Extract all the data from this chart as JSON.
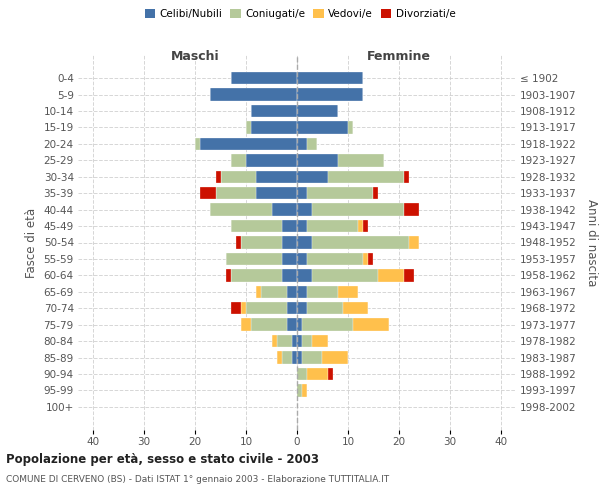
{
  "age_groups": [
    "0-4",
    "5-9",
    "10-14",
    "15-19",
    "20-24",
    "25-29",
    "30-34",
    "35-39",
    "40-44",
    "45-49",
    "50-54",
    "55-59",
    "60-64",
    "65-69",
    "70-74",
    "75-79",
    "80-84",
    "85-89",
    "90-94",
    "95-99",
    "100+"
  ],
  "birth_years": [
    "1998-2002",
    "1993-1997",
    "1988-1992",
    "1983-1987",
    "1978-1982",
    "1973-1977",
    "1968-1972",
    "1963-1967",
    "1958-1962",
    "1953-1957",
    "1948-1952",
    "1943-1947",
    "1938-1942",
    "1933-1937",
    "1928-1932",
    "1923-1927",
    "1918-1922",
    "1913-1917",
    "1908-1912",
    "1903-1907",
    "≤ 1902"
  ],
  "colors": {
    "celibe": "#4472a8",
    "coniugato": "#b5c99a",
    "vedovo": "#ffc04c",
    "divorziato": "#cc1100"
  },
  "male": {
    "celibe": [
      13,
      17,
      9,
      9,
      19,
      10,
      8,
      8,
      5,
      3,
      3,
      3,
      3,
      2,
      2,
      2,
      1,
      1,
      0,
      0,
      0
    ],
    "coniugato": [
      0,
      0,
      0,
      1,
      1,
      3,
      7,
      8,
      12,
      10,
      8,
      11,
      10,
      5,
      8,
      7,
      3,
      2,
      0,
      0,
      0
    ],
    "vedovo": [
      0,
      0,
      0,
      0,
      0,
      0,
      0,
      0,
      0,
      0,
      0,
      0,
      0,
      1,
      1,
      2,
      1,
      1,
      0,
      0,
      0
    ],
    "divorziato": [
      0,
      0,
      0,
      0,
      0,
      0,
      1,
      3,
      0,
      0,
      1,
      0,
      1,
      0,
      2,
      0,
      0,
      0,
      0,
      0,
      0
    ]
  },
  "female": {
    "nubile": [
      13,
      13,
      8,
      10,
      2,
      8,
      6,
      2,
      3,
      2,
      3,
      2,
      3,
      2,
      2,
      1,
      1,
      1,
      0,
      0,
      0
    ],
    "coniugata": [
      0,
      0,
      0,
      1,
      2,
      9,
      15,
      13,
      18,
      10,
      19,
      11,
      13,
      6,
      7,
      10,
      2,
      4,
      2,
      1,
      0
    ],
    "vedova": [
      0,
      0,
      0,
      0,
      0,
      0,
      0,
      0,
      0,
      1,
      2,
      1,
      5,
      4,
      5,
      7,
      3,
      5,
      4,
      1,
      0
    ],
    "divorziata": [
      0,
      0,
      0,
      0,
      0,
      0,
      1,
      1,
      3,
      1,
      0,
      1,
      2,
      0,
      0,
      0,
      0,
      0,
      1,
      0,
      0
    ]
  },
  "xlim": [
    -43,
    43
  ],
  "xticks": [
    -40,
    -30,
    -20,
    -10,
    0,
    10,
    20,
    30,
    40
  ],
  "xtick_labels": [
    "40",
    "30",
    "20",
    "10",
    "0",
    "10",
    "20",
    "30",
    "40"
  ],
  "title_main": "Popolazione per età, sesso e stato civile - 2003",
  "title_sub": "COMUNE DI CERVENO (BS) - Dati ISTAT 1° gennaio 2003 - Elaborazione TUTTITALIA.IT",
  "ylabel_left": "Fasce di età",
  "ylabel_right": "Anni di nascita",
  "label_maschi": "Maschi",
  "label_femmine": "Femmine",
  "legend_labels": [
    "Celibi/Nubili",
    "Coniugati/e",
    "Vedovi/e",
    "Divorziati/e"
  ],
  "background_color": "#ffffff",
  "grid_color": "#cccccc"
}
